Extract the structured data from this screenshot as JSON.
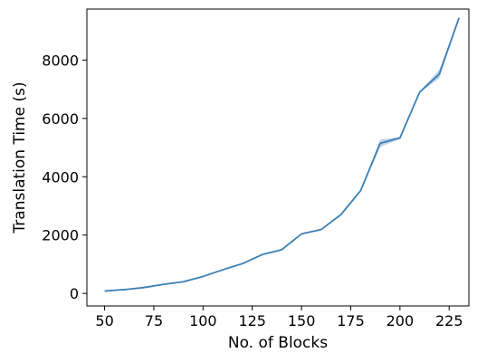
{
  "chart_data": {
    "type": "line",
    "title": "",
    "xlabel": "No. of Blocks",
    "ylabel": "Translation Time (s)",
    "xlim": [
      41,
      235
    ],
    "ylim": [
      -430,
      9750
    ],
    "xticks": [
      50,
      75,
      100,
      125,
      150,
      175,
      200,
      225
    ],
    "yticks": [
      0,
      2000,
      4000,
      6000,
      8000
    ],
    "grid": false,
    "legend": "none",
    "colors": {
      "line": "#3b7fb5",
      "band": "#8aaed6"
    },
    "series": [
      {
        "x": [
          50,
          60,
          70,
          80,
          90,
          100,
          110,
          120,
          130,
          140,
          150,
          160,
          170,
          180,
          190,
          200,
          210,
          220,
          230
        ],
        "y": [
          80,
          130,
          200,
          310,
          400,
          580,
          810,
          1020,
          1330,
          1500,
          2040,
          2190,
          2700,
          3520,
          5150,
          5330,
          6900,
          7520,
          9450
        ],
        "y_lower": [
          70,
          120,
          190,
          300,
          390,
          570,
          800,
          1010,
          1320,
          1490,
          2030,
          2180,
          2690,
          3510,
          5020,
          5300,
          6880,
          7380,
          9440
        ],
        "y_upper": [
          90,
          140,
          210,
          320,
          410,
          590,
          820,
          1030,
          1340,
          1510,
          2050,
          2200,
          2710,
          3530,
          5280,
          5360,
          6920,
          7670,
          9460
        ]
      }
    ]
  }
}
